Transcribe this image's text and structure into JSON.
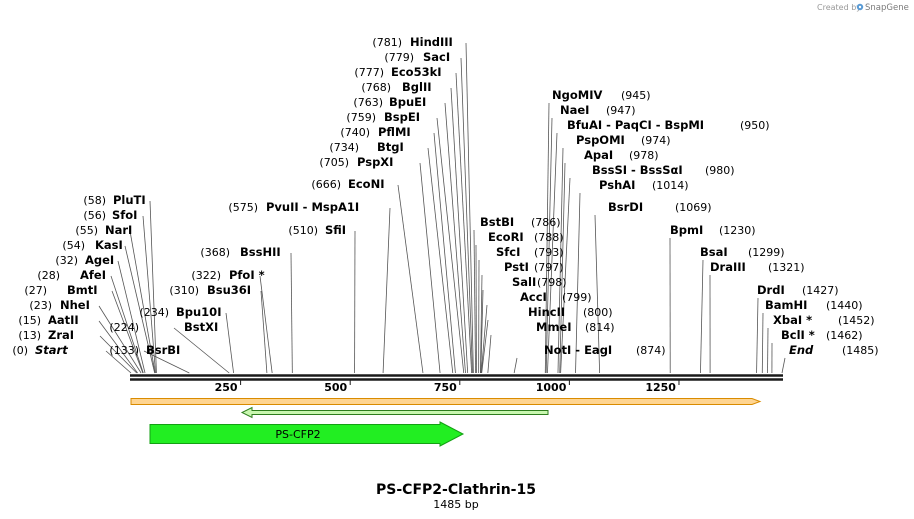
{
  "credit": {
    "prefix": "Created by",
    "brand": "SnapGene"
  },
  "map": {
    "title": "PS-CFP2-Clathrin-15",
    "length_label": "1485 bp",
    "length": 1485,
    "ticks": [
      250,
      500,
      750,
      1000,
      1250
    ]
  },
  "features": [
    {
      "name": "PS-CFP2",
      "type": "cds"
    }
  ],
  "sites": {
    "left": [
      {
        "pos": "(0)",
        "name": "Start",
        "italic": true,
        "bp": 0
      },
      {
        "pos": "(13)",
        "name": "ZraI",
        "bp": 13
      },
      {
        "pos": "(15)",
        "name": "AatII",
        "bp": 15
      },
      {
        "pos": "(23)",
        "name": "NheI",
        "bp": 23
      },
      {
        "pos": "(27)",
        "name": "BmtI",
        "bp": 27
      },
      {
        "pos": "(28)",
        "name": "AfeI",
        "bp": 28
      },
      {
        "pos": "(32)",
        "name": "AgeI",
        "bp": 32
      },
      {
        "pos": "(54)",
        "name": "KasI",
        "bp": 54
      },
      {
        "pos": "(55)",
        "name": "NarI",
        "bp": 55
      },
      {
        "pos": "(56)",
        "name": "SfoI",
        "bp": 56
      },
      {
        "pos": "(58)",
        "name": "PluTI",
        "bp": 58
      },
      {
        "pos": "(133)",
        "name": "BsrBI",
        "bp": 133
      },
      {
        "pos": "(224)",
        "name": "BstXI",
        "bp": 224
      },
      {
        "pos": "(234)",
        "name": "Bpu10I",
        "bp": 234
      },
      {
        "pos": "(310)",
        "name": "Bsu36I",
        "bp": 310
      },
      {
        "pos": "(322)",
        "name": "PfoI *",
        "bp": 322
      },
      {
        "pos": "(368)",
        "name": "BssHII",
        "bp": 368
      },
      {
        "pos": "(510)",
        "name": "SfiI",
        "bp": 510
      },
      {
        "pos": "(575)",
        "name": "PvuII  -  MspA1I",
        "bp": 575
      },
      {
        "pos": "(666)",
        "name": "EcoNI",
        "bp": 666
      },
      {
        "pos": "(705)",
        "name": "PspXI",
        "bp": 705
      },
      {
        "pos": "(734)",
        "name": "BtgI",
        "bp": 734
      },
      {
        "pos": "(740)",
        "name": "PflMI",
        "bp": 740
      },
      {
        "pos": "(759)",
        "name": "BspEI",
        "bp": 759
      },
      {
        "pos": "(763)",
        "name": "BpuEI",
        "bp": 763
      },
      {
        "pos": "(768)",
        "name": "BglII",
        "bp": 768
      },
      {
        "pos": "(777)",
        "name": "Eco53kI",
        "bp": 777
      },
      {
        "pos": "(779)",
        "name": "SacI",
        "bp": 779
      },
      {
        "pos": "(781)",
        "name": "HindIII",
        "bp": 781
      }
    ],
    "right": [
      {
        "name": "BstBI",
        "pos": "(786)",
        "bp": 786
      },
      {
        "name": "EcoRI",
        "pos": "(788)",
        "bp": 788
      },
      {
        "name": "SfcI",
        "pos": "(793)",
        "bp": 793
      },
      {
        "name": "PstI",
        "pos": "(797)",
        "bp": 797
      },
      {
        "name": "SalI",
        "pos": "(798)",
        "bp": 798
      },
      {
        "name": "AccI",
        "pos": "(799)",
        "bp": 799
      },
      {
        "name": "HincII",
        "pos": "(800)",
        "bp": 800
      },
      {
        "name": "MmeI",
        "pos": "(814)",
        "bp": 814
      },
      {
        "name": "NotI  -  EagI",
        "pos": "(874)",
        "bp": 874
      },
      {
        "name": "NgoMIV",
        "pos": "(945)",
        "bp": 945
      },
      {
        "name": "NaeI",
        "pos": "(947)",
        "bp": 947
      },
      {
        "name": "BfuAI  -  PaqCI  -  BspMI",
        "pos": "(950)",
        "bp": 950
      },
      {
        "name": "PspOMI",
        "pos": "(974)",
        "bp": 974
      },
      {
        "name": "ApaI",
        "pos": "(978)",
        "bp": 978
      },
      {
        "name": "BssSI  -  BssSαI",
        "pos": "(980)",
        "bp": 980
      },
      {
        "name": "PshAI",
        "pos": "(1014)",
        "bp": 1014
      },
      {
        "name": "BsrDI",
        "pos": "(1069)",
        "bp": 1069
      },
      {
        "name": "BpmI",
        "pos": "(1230)",
        "bp": 1230
      },
      {
        "name": "BsaI",
        "pos": "(1299)",
        "bp": 1299
      },
      {
        "name": "DraIII",
        "pos": "(1321)",
        "bp": 1321
      },
      {
        "name": "DrdI",
        "pos": "(1427)",
        "bp": 1427
      },
      {
        "name": "BamHI",
        "pos": "(1440)",
        "bp": 1440
      },
      {
        "name": "XbaI *",
        "pos": "(1452)",
        "bp": 1452
      },
      {
        "name": "BclI *",
        "pos": "(1462)",
        "bp": 1462
      },
      {
        "name": "End",
        "pos": "(1485)",
        "italic": true,
        "bp": 1485
      }
    ]
  },
  "colors": {
    "backbone": "#1a1a1a",
    "cds_fill": "#22ee22",
    "cds_stroke": "#14a014",
    "orange_fill": "#ffd591",
    "orange_stroke": "#d98b00",
    "green_arrow_fill": "#c9f7b0",
    "green_arrow_stroke": "#2e7d1e",
    "leader": "#555555"
  }
}
